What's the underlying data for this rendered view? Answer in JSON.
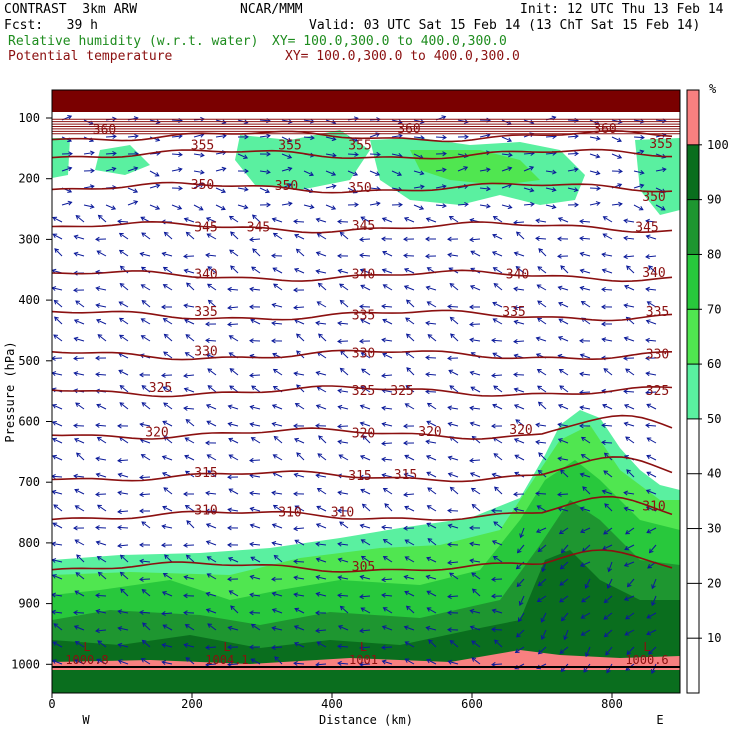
{
  "header": {
    "model": "CONTRAST  3km ARW",
    "center": "NCAR/MMM",
    "init": "Init: 12 UTC Thu 13 Feb 14",
    "fcst": "Fcst:   39 h",
    "valid": "Valid: 03 UTC Sat 15 Feb 14 (13 ChT Sat 15 Feb 14)",
    "field1": "Relative humidity (w.r.t. water)",
    "field1_xy": "XY= 100.0,300.0 to 400.0,300.0",
    "field2": "Potential temperature",
    "field2_xy": "XY= 100.0,300.0 to 400.0,300.0"
  },
  "chart_data": {
    "type": "cross-section",
    "xlabel": "Distance (km)",
    "ylabel": "Pressure (hPa)",
    "xlim": [
      0,
      900
    ],
    "ylim": [
      1000,
      50
    ],
    "xticks": [
      "0",
      "200",
      "400",
      "600",
      "800"
    ],
    "yticks": [
      "100",
      "200",
      "300",
      "400",
      "500",
      "600",
      "700",
      "800",
      "900",
      "1000"
    ],
    "west_label": "W",
    "east_label": "E",
    "colorbar": {
      "unit": "%",
      "levels": [
        "100",
        "90",
        "80",
        "70",
        "60",
        "50",
        "40",
        "30",
        "20",
        "10"
      ],
      "bands": [
        {
          "from": 100,
          "to": 110,
          "color": "#f88080"
        },
        {
          "from": 90,
          "to": 100,
          "color": "#0a6e1e"
        },
        {
          "from": 80,
          "to": 90,
          "color": "#1e9630"
        },
        {
          "from": 70,
          "to": 80,
          "color": "#28c83c"
        },
        {
          "from": 60,
          "to": 70,
          "color": "#50e650"
        },
        {
          "from": 50,
          "to": 60,
          "color": "#5af0a0"
        }
      ]
    },
    "theta_levels": [
      {
        "value": 360,
        "p": 130
      },
      {
        "value": 355,
        "p": 160
      },
      {
        "value": 350,
        "p": 215
      },
      {
        "value": 345,
        "p": 280
      },
      {
        "value": 340,
        "p": 360
      },
      {
        "value": 335,
        "p": 425
      },
      {
        "value": 330,
        "p": 490
      },
      {
        "value": 325,
        "p": 550
      },
      {
        "value": 320,
        "p": 620
      },
      {
        "value": 315,
        "p": 690
      },
      {
        "value": 310,
        "p": 755
      },
      {
        "value": 305,
        "p": 840
      }
    ],
    "theta_labels": [
      {
        "text": "360",
        "x": 75,
        "p": 120
      },
      {
        "text": "360",
        "x": 510,
        "p": 118
      },
      {
        "text": "360",
        "x": 790,
        "p": 118
      },
      {
        "text": "355",
        "x": 215,
        "p": 145
      },
      {
        "text": "355",
        "x": 340,
        "p": 145
      },
      {
        "text": "355",
        "x": 440,
        "p": 145
      },
      {
        "text": "355",
        "x": 870,
        "p": 143
      },
      {
        "text": "350",
        "x": 215,
        "p": 210
      },
      {
        "text": "350",
        "x": 335,
        "p": 212
      },
      {
        "text": "350",
        "x": 440,
        "p": 215
      },
      {
        "text": "350",
        "x": 860,
        "p": 230
      },
      {
        "text": "345",
        "x": 220,
        "p": 280
      },
      {
        "text": "345",
        "x": 295,
        "p": 280
      },
      {
        "text": "345",
        "x": 445,
        "p": 278
      },
      {
        "text": "345",
        "x": 850,
        "p": 280
      },
      {
        "text": "340",
        "x": 220,
        "p": 358
      },
      {
        "text": "340",
        "x": 445,
        "p": 358
      },
      {
        "text": "340",
        "x": 665,
        "p": 358
      },
      {
        "text": "340",
        "x": 860,
        "p": 355
      },
      {
        "text": "335",
        "x": 220,
        "p": 420
      },
      {
        "text": "335",
        "x": 445,
        "p": 425
      },
      {
        "text": "335",
        "x": 660,
        "p": 420
      },
      {
        "text": "335",
        "x": 865,
        "p": 420
      },
      {
        "text": "330",
        "x": 220,
        "p": 485
      },
      {
        "text": "330",
        "x": 445,
        "p": 488
      },
      {
        "text": "330",
        "x": 865,
        "p": 490
      },
      {
        "text": "325",
        "x": 155,
        "p": 545
      },
      {
        "text": "325",
        "x": 445,
        "p": 550
      },
      {
        "text": "325",
        "x": 500,
        "p": 550
      },
      {
        "text": "325",
        "x": 865,
        "p": 550
      },
      {
        "text": "320",
        "x": 150,
        "p": 618
      },
      {
        "text": "320",
        "x": 445,
        "p": 620
      },
      {
        "text": "320",
        "x": 540,
        "p": 617
      },
      {
        "text": "320",
        "x": 670,
        "p": 614
      },
      {
        "text": "315",
        "x": 220,
        "p": 685
      },
      {
        "text": "315",
        "x": 440,
        "p": 690
      },
      {
        "text": "315",
        "x": 505,
        "p": 688
      },
      {
        "text": "310",
        "x": 220,
        "p": 747
      },
      {
        "text": "310",
        "x": 340,
        "p": 750
      },
      {
        "text": "310",
        "x": 415,
        "p": 750
      },
      {
        "text": "310",
        "x": 860,
        "p": 740
      },
      {
        "text": "305",
        "x": 445,
        "p": 840
      }
    ],
    "low_labels": [
      {
        "mark": "L",
        "value": "1000.8",
        "x": 50
      },
      {
        "mark": "L",
        "value": "1004.1",
        "x": 250
      },
      {
        "mark": "L",
        "value": "1001",
        "x": 445
      },
      {
        "mark": "L",
        "value": "1000.6",
        "x": 850
      }
    ]
  }
}
